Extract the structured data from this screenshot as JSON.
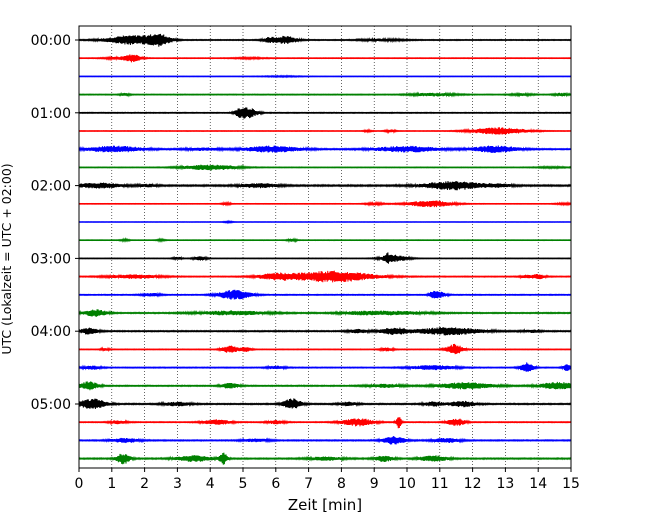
{
  "chart_data": {
    "type": "line",
    "subtype": "seismogram-helicorder",
    "xlabel": "Zeit  [min]",
    "ylabel": "UTC (Lokalzeit = UTC + 02:00)",
    "xlim": [
      0,
      15
    ],
    "x_ticks": [
      0,
      1,
      2,
      3,
      4,
      5,
      6,
      7,
      8,
      9,
      10,
      11,
      12,
      13,
      14,
      15
    ],
    "x_tick_labels": [
      "0",
      "1",
      "2",
      "3",
      "4",
      "5",
      "6",
      "7",
      "8",
      "9",
      "10",
      "11",
      "12",
      "13",
      "14",
      "15"
    ],
    "grid": "vertical-dotted",
    "row_minutes": 15,
    "row_colors": [
      "#000000",
      "#ff0000",
      "#0000ff",
      "#008000"
    ],
    "y_tick_labels": [
      {
        "row": 0,
        "label": "00:00"
      },
      {
        "row": 4,
        "label": "01:00"
      },
      {
        "row": 8,
        "label": "02:00"
      },
      {
        "row": 12,
        "label": "03:00"
      },
      {
        "row": 16,
        "label": "04:00"
      },
      {
        "row": 20,
        "label": "05:00"
      }
    ],
    "traces": [
      {
        "row": 0,
        "base": 0.45,
        "bursts": [
          [
            1.6,
            0.55,
            4.5
          ],
          [
            2.45,
            0.25,
            5
          ],
          [
            6.3,
            0.25,
            4
          ],
          [
            5.8,
            0.15,
            2.2
          ],
          [
            9.2,
            0.5,
            1.0
          ]
        ]
      },
      {
        "row": 1,
        "base": 0.35,
        "bursts": [
          [
            1.65,
            0.18,
            3.5
          ],
          [
            1.2,
            0.3,
            1.2
          ],
          [
            5.2,
            0.4,
            0.6
          ]
        ]
      },
      {
        "row": 2,
        "base": 0.22,
        "bursts": [
          [
            6.2,
            0.5,
            0.5
          ]
        ]
      },
      {
        "row": 3,
        "base": 0.4,
        "bursts": [
          [
            10.8,
            0.5,
            1.5
          ],
          [
            13.5,
            0.25,
            1.0
          ],
          [
            1.4,
            0.1,
            1.4
          ],
          [
            14.7,
            0.15,
            1.6
          ]
        ]
      },
      {
        "row": 4,
        "base": 0.45,
        "bursts": [
          [
            5.15,
            0.2,
            5
          ],
          [
            4.9,
            0.12,
            2.4
          ]
        ]
      },
      {
        "row": 5,
        "base": 0.3,
        "bursts": [
          [
            12.8,
            0.6,
            3.5
          ],
          [
            9.5,
            0.12,
            1.3
          ],
          [
            8.8,
            0.1,
            0.8
          ]
        ]
      },
      {
        "row": 6,
        "base": 0.6,
        "bursts": [
          [
            1.1,
            0.6,
            3
          ],
          [
            5.9,
            0.6,
            3
          ],
          [
            10.0,
            0.7,
            2.8
          ],
          [
            12.7,
            0.5,
            3.2
          ],
          [
            3.8,
            0.4,
            1.2
          ]
        ]
      },
      {
        "row": 7,
        "base": 0.35,
        "bursts": [
          [
            4.0,
            0.6,
            2.8
          ],
          [
            14.4,
            0.4,
            0.6
          ]
        ]
      },
      {
        "row": 8,
        "base": 0.7,
        "bursts": [
          [
            11.4,
            0.65,
            4
          ],
          [
            0.6,
            0.5,
            2.4
          ],
          [
            5.5,
            0.4,
            2
          ],
          [
            2.1,
            0.2,
            1.2
          ],
          [
            12.8,
            0.3,
            1.2
          ]
        ]
      },
      {
        "row": 9,
        "base": 0.3,
        "bursts": [
          [
            10.7,
            0.5,
            3.2
          ],
          [
            9.0,
            0.2,
            1.1
          ],
          [
            4.5,
            0.1,
            1.1
          ],
          [
            14.8,
            0.2,
            0.8
          ]
        ]
      },
      {
        "row": 10,
        "base": 0.18,
        "bursts": [
          [
            4.55,
            0.12,
            0.7
          ]
        ]
      },
      {
        "row": 11,
        "base": 0.3,
        "bursts": [
          [
            6.5,
            0.1,
            1.4
          ],
          [
            1.4,
            0.1,
            1.0
          ],
          [
            2.5,
            0.1,
            0.9
          ]
        ]
      },
      {
        "row": 12,
        "base": 0.3,
        "bursts": [
          [
            9.6,
            0.3,
            3.5
          ],
          [
            3.7,
            0.15,
            2.0
          ],
          [
            3.0,
            0.1,
            1.4
          ],
          [
            9.4,
            0.05,
            3.2
          ]
        ]
      },
      {
        "row": 13,
        "base": 0.45,
        "bursts": [
          [
            7.7,
            0.9,
            5.5
          ],
          [
            6.0,
            0.4,
            2.6
          ],
          [
            1.7,
            0.6,
            1.8
          ],
          [
            14.0,
            0.15,
            2.3
          ],
          [
            13.6,
            0.12,
            1.4
          ]
        ]
      },
      {
        "row": 14,
        "base": 0.45,
        "bursts": [
          [
            4.75,
            0.35,
            4.8
          ],
          [
            10.8,
            0.1,
            3
          ],
          [
            11.0,
            0.15,
            2.6
          ],
          [
            2.2,
            0.2,
            1.5
          ]
        ]
      },
      {
        "row": 15,
        "base": 0.55,
        "bursts": [
          [
            0.5,
            0.25,
            3.3
          ],
          [
            4.7,
            0.8,
            2
          ],
          [
            9.8,
            0.7,
            1.6
          ],
          [
            8.6,
            0.5,
            1.4
          ]
        ]
      },
      {
        "row": 16,
        "base": 0.6,
        "bursts": [
          [
            11.3,
            0.7,
            3.8
          ],
          [
            9.6,
            0.3,
            3.2
          ],
          [
            0.3,
            0.2,
            3.1
          ],
          [
            8.5,
            0.2,
            1.8
          ],
          [
            13.8,
            0.2,
            1.2
          ]
        ]
      },
      {
        "row": 17,
        "base": 0.35,
        "bursts": [
          [
            11.45,
            0.18,
            5.2
          ],
          [
            4.6,
            0.18,
            3.5
          ],
          [
            5.1,
            0.12,
            2.4
          ],
          [
            0.8,
            0.1,
            1.4
          ],
          [
            9.4,
            0.15,
            1.6
          ]
        ]
      },
      {
        "row": 18,
        "base": 0.45,
        "bursts": [
          [
            10.8,
            0.5,
            2.2
          ],
          [
            13.65,
            0.15,
            5
          ],
          [
            14.9,
            0.1,
            3.5
          ],
          [
            0.4,
            0.2,
            1.8
          ],
          [
            6.0,
            0.2,
            1.5
          ]
        ]
      },
      {
        "row": 19,
        "base": 0.55,
        "bursts": [
          [
            0.3,
            0.2,
            4.2
          ],
          [
            11.8,
            0.6,
            3.2
          ],
          [
            14.6,
            0.4,
            3.5
          ],
          [
            4.6,
            0.2,
            2.5
          ],
          [
            9.3,
            0.4,
            1.6
          ]
        ]
      },
      {
        "row": 20,
        "base": 0.6,
        "bursts": [
          [
            0.4,
            0.3,
            5
          ],
          [
            6.5,
            0.2,
            5.2
          ],
          [
            11.7,
            0.3,
            2.6
          ],
          [
            10.8,
            0.2,
            2.2
          ],
          [
            3.0,
            0.3,
            1.8
          ],
          [
            8.2,
            0.2,
            1.8
          ]
        ]
      },
      {
        "row": 21,
        "base": 0.45,
        "bursts": [
          [
            8.5,
            0.35,
            3.8
          ],
          [
            9.75,
            0.06,
            6
          ],
          [
            11.5,
            0.2,
            3.6
          ],
          [
            4.2,
            0.3,
            2.6
          ],
          [
            6.0,
            0.2,
            1.8
          ],
          [
            1.2,
            0.2,
            1.6
          ]
        ]
      },
      {
        "row": 22,
        "base": 0.55,
        "bursts": [
          [
            9.6,
            0.25,
            3.8
          ],
          [
            1.4,
            0.3,
            2.2
          ],
          [
            11.2,
            0.3,
            2.2
          ],
          [
            5.4,
            0.3,
            1.4
          ]
        ]
      },
      {
        "row": 23,
        "base": 0.6,
        "bursts": [
          [
            1.35,
            0.15,
            5.2
          ],
          [
            4.4,
            0.08,
            6
          ],
          [
            3.5,
            0.4,
            2.8
          ],
          [
            10.8,
            0.3,
            2.8
          ],
          [
            9.3,
            0.2,
            2.8
          ],
          [
            7.5,
            0.4,
            1.6
          ]
        ]
      }
    ]
  }
}
